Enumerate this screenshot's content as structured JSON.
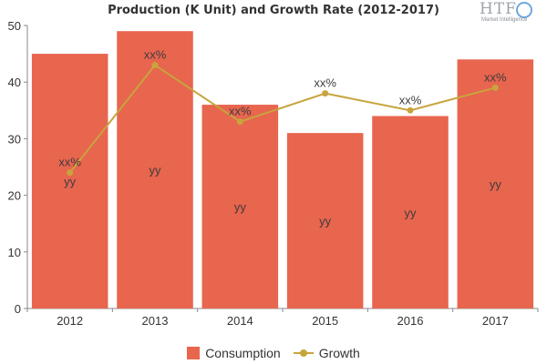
{
  "title": "Production (K Unit) and Growth Rate (2012-2017)",
  "logo": {
    "text": "HTF",
    "subtext": "Market Intelligence"
  },
  "colors": {
    "bar": "#e8654e",
    "line": "#c8a43d",
    "axis": "#888888",
    "text": "#333333"
  },
  "chart_data": {
    "type": "bar",
    "title": "Production (K Unit) and Growth Rate (2012-2017)",
    "categories": [
      "2012",
      "2013",
      "2014",
      "2015",
      "2016",
      "2017"
    ],
    "ylim": [
      0,
      50
    ],
    "yticks": [
      0,
      10,
      20,
      30,
      40,
      50
    ],
    "grid": false,
    "legend_position": "bottom",
    "series": [
      {
        "name": "Consumption",
        "type": "bar",
        "values": [
          45,
          49,
          36,
          31,
          34,
          44
        ],
        "data_labels": [
          "yy",
          "yy",
          "yy",
          "yy",
          "yy",
          "yy"
        ]
      },
      {
        "name": "Growth",
        "type": "line",
        "values": [
          24,
          43,
          33,
          38,
          35,
          39
        ],
        "data_labels": [
          "xx%",
          "xx%",
          "xx%",
          "xx%",
          "xx%",
          "xx%"
        ]
      }
    ]
  }
}
